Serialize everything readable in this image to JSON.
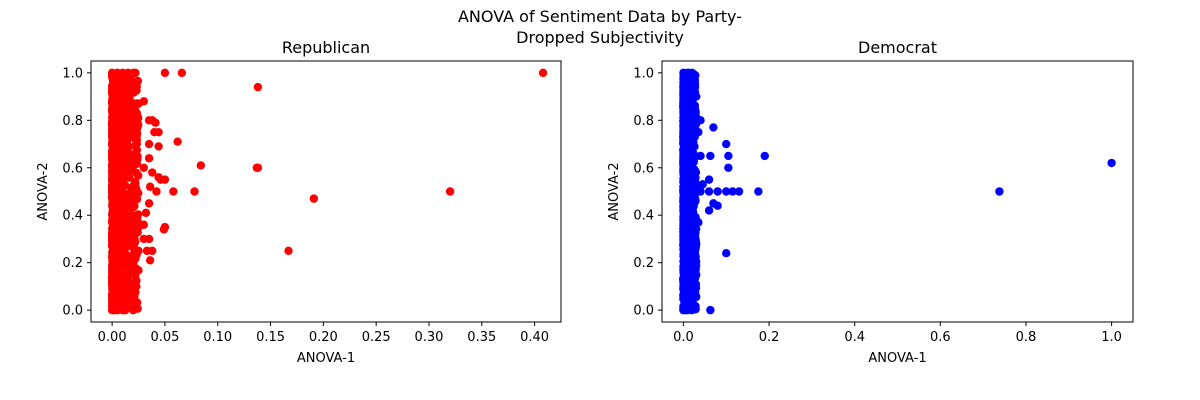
{
  "figure": {
    "suptitle_line1": "ANOVA of Sentiment Data by Party-",
    "suptitle_line2": "Dropped Subjectivity"
  },
  "chart_data": [
    {
      "type": "scatter",
      "title": "Republican",
      "xlabel": "ANOVA-1",
      "ylabel": "ANOVA-2",
      "xlim": [
        -0.02,
        0.425
      ],
      "ylim": [
        -0.05,
        1.05
      ],
      "xticks": [
        0.0,
        0.05,
        0.1,
        0.15,
        0.2,
        0.25,
        0.3,
        0.35,
        0.4
      ],
      "xtick_labels": [
        "0.00",
        "0.05",
        "0.10",
        "0.15",
        "0.20",
        "0.25",
        "0.30",
        "0.35",
        "0.40"
      ],
      "yticks": [
        0.0,
        0.2,
        0.4,
        0.6,
        0.8,
        1.0
      ],
      "ytick_labels": [
        "0.0",
        "0.2",
        "0.4",
        "0.6",
        "0.8",
        "1.0"
      ],
      "color": "#ff0000",
      "dense_cluster": {
        "x_range": [
          0.0,
          0.025
        ],
        "y_range": [
          0.0,
          1.0
        ]
      },
      "points": [
        [
          0.0,
          0.0
        ],
        [
          0.002,
          0.0
        ],
        [
          0.005,
          0.0
        ],
        [
          0.01,
          0.0
        ],
        [
          0.012,
          0.0
        ],
        [
          0.02,
          0.0
        ],
        [
          0.0,
          1.0
        ],
        [
          0.005,
          1.0
        ],
        [
          0.01,
          1.0
        ],
        [
          0.015,
          1.0
        ],
        [
          0.02,
          1.0
        ],
        [
          0.022,
          1.0
        ],
        [
          0.05,
          1.0
        ],
        [
          0.066,
          1.0
        ],
        [
          0.408,
          1.0
        ],
        [
          0.138,
          0.94
        ],
        [
          0.03,
          0.88
        ],
        [
          0.025,
          0.87
        ],
        [
          0.02,
          0.86
        ],
        [
          0.038,
          0.8
        ],
        [
          0.041,
          0.79
        ],
        [
          0.044,
          0.75
        ],
        [
          0.04,
          0.75
        ],
        [
          0.035,
          0.8
        ],
        [
          0.062,
          0.71
        ],
        [
          0.044,
          0.69
        ],
        [
          0.035,
          0.7
        ],
        [
          0.035,
          0.64
        ],
        [
          0.084,
          0.61
        ],
        [
          0.138,
          0.6
        ],
        [
          0.137,
          0.6
        ],
        [
          0.03,
          0.6
        ],
        [
          0.038,
          0.58
        ],
        [
          0.044,
          0.56
        ],
        [
          0.046,
          0.55
        ],
        [
          0.05,
          0.55
        ],
        [
          0.058,
          0.5
        ],
        [
          0.078,
          0.5
        ],
        [
          0.042,
          0.5
        ],
        [
          0.036,
          0.52
        ],
        [
          0.32,
          0.5
        ],
        [
          0.191,
          0.47
        ],
        [
          0.035,
          0.45
        ],
        [
          0.032,
          0.41
        ],
        [
          0.03,
          0.36
        ],
        [
          0.025,
          0.35
        ],
        [
          0.05,
          0.35
        ],
        [
          0.049,
          0.34
        ],
        [
          0.035,
          0.3
        ],
        [
          0.03,
          0.3
        ],
        [
          0.033,
          0.25
        ],
        [
          0.038,
          0.25
        ],
        [
          0.167,
          0.25
        ],
        [
          0.025,
          0.25
        ],
        [
          0.036,
          0.21
        ],
        [
          0.02,
          0.2
        ],
        [
          0.015,
          0.15
        ],
        [
          0.012,
          0.1
        ],
        [
          0.01,
          0.05
        ],
        [
          0.015,
          0.05
        ]
      ]
    },
    {
      "type": "scatter",
      "title": "Democrat",
      "xlabel": "ANOVA-1",
      "ylabel": "ANOVA-2",
      "xlim": [
        -0.05,
        1.05
      ],
      "ylim": [
        -0.05,
        1.05
      ],
      "xticks": [
        0.0,
        0.2,
        0.4,
        0.6,
        0.8,
        1.0
      ],
      "xtick_labels": [
        "0.0",
        "0.2",
        "0.4",
        "0.6",
        "0.8",
        "1.0"
      ],
      "yticks": [
        0.0,
        0.2,
        0.4,
        0.6,
        0.8,
        1.0
      ],
      "ytick_labels": [
        "0.0",
        "0.2",
        "0.4",
        "0.6",
        "0.8",
        "1.0"
      ],
      "color": "#0000ff",
      "dense_cluster": {
        "x_range": [
          0.0,
          0.03
        ],
        "y_range": [
          0.0,
          1.0
        ]
      },
      "points": [
        [
          0.0,
          0.0
        ],
        [
          0.005,
          0.0
        ],
        [
          0.01,
          0.0
        ],
        [
          0.02,
          0.0
        ],
        [
          0.063,
          0.0
        ],
        [
          0.0,
          1.0
        ],
        [
          0.01,
          1.0
        ],
        [
          0.02,
          1.0
        ],
        [
          0.025,
          0.9
        ],
        [
          0.03,
          0.9
        ],
        [
          0.07,
          0.77
        ],
        [
          0.04,
          0.8
        ],
        [
          0.035,
          0.75
        ],
        [
          0.1,
          0.7
        ],
        [
          0.105,
          0.65
        ],
        [
          0.063,
          0.65
        ],
        [
          0.19,
          0.65
        ],
        [
          0.04,
          0.65
        ],
        [
          1.0,
          0.62
        ],
        [
          0.105,
          0.6
        ],
        [
          0.06,
          0.55
        ],
        [
          0.045,
          0.53
        ],
        [
          0.04,
          0.5
        ],
        [
          0.06,
          0.5
        ],
        [
          0.08,
          0.5
        ],
        [
          0.1,
          0.5
        ],
        [
          0.115,
          0.5
        ],
        [
          0.13,
          0.5
        ],
        [
          0.175,
          0.5
        ],
        [
          0.738,
          0.5
        ],
        [
          0.07,
          0.45
        ],
        [
          0.06,
          0.42
        ],
        [
          0.08,
          0.44
        ],
        [
          0.035,
          0.37
        ],
        [
          0.025,
          0.33
        ],
        [
          0.03,
          0.28
        ],
        [
          0.1,
          0.24
        ],
        [
          0.02,
          0.22
        ],
        [
          0.015,
          0.2
        ],
        [
          0.01,
          0.15
        ],
        [
          0.01,
          0.1
        ],
        [
          0.005,
          0.05
        ]
      ]
    }
  ]
}
